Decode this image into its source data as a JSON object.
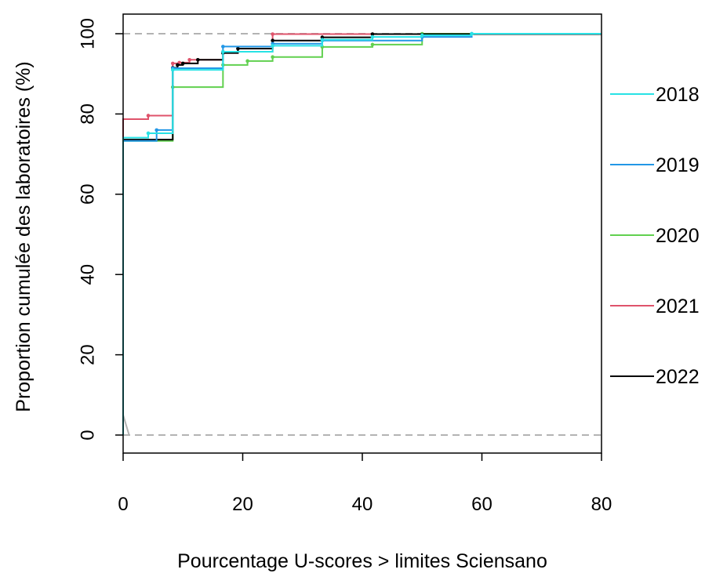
{
  "chart_data": {
    "type": "line",
    "step": true,
    "title": "",
    "xlabel": "Pourcentage U-scores > limites Sciensano",
    "ylabel": "Proportion cumulée des laboratoires (%)",
    "xlim": [
      0,
      80
    ],
    "ylim": [
      0,
      100
    ],
    "x_ticks": [
      0,
      20,
      40,
      60,
      80
    ],
    "y_ticks": [
      0,
      20,
      40,
      60,
      80,
      100
    ],
    "grid": false,
    "legend_position": "right",
    "reference_lines": [
      {
        "y": 0,
        "color": "#b3b3b3",
        "style": "dashed"
      },
      {
        "y": 100,
        "color": "#b3b3b3",
        "style": "dashed"
      }
    ],
    "series": [
      {
        "name": "2020",
        "color": "#61d04f",
        "points": [
          [
            0,
            73.3
          ],
          [
            8.3,
            86.7
          ],
          [
            16.7,
            92.2
          ],
          [
            20.8,
            93.2
          ],
          [
            25,
            94.2
          ],
          [
            33.3,
            96.7
          ],
          [
            41.7,
            97.3
          ],
          [
            50,
            100
          ],
          [
            80,
            100
          ]
        ]
      },
      {
        "name": "2021",
        "color": "#df536b",
        "points": [
          [
            0,
            78.7
          ],
          [
            4.2,
            79.6
          ],
          [
            8.3,
            92.6
          ],
          [
            9.4,
            92.8
          ],
          [
            11.1,
            93.5
          ],
          [
            16.7,
            95.5
          ],
          [
            25,
            99.9
          ],
          [
            80,
            99.9
          ]
        ]
      },
      {
        "name": "2022",
        "color": "#000000",
        "points": [
          [
            0,
            73.6
          ],
          [
            8.3,
            91.5
          ],
          [
            9.1,
            92.2
          ],
          [
            10,
            92.6
          ],
          [
            12.5,
            93.5
          ],
          [
            16.7,
            95.2
          ],
          [
            19.2,
            96.3
          ],
          [
            25,
            98.3
          ],
          [
            33.3,
            99.1
          ],
          [
            41.7,
            99.9
          ],
          [
            80,
            99.9
          ]
        ]
      },
      {
        "name": "2019",
        "color": "#2297e6",
        "points": [
          [
            0,
            73.3
          ],
          [
            5.6,
            76.0
          ],
          [
            8.3,
            91.4
          ],
          [
            16.7,
            96.8
          ],
          [
            25,
            97.5
          ],
          [
            33.3,
            98.3
          ],
          [
            50,
            99.2
          ],
          [
            58.3,
            100
          ],
          [
            80,
            100
          ]
        ]
      },
      {
        "name": "2018",
        "color": "#28e2e5",
        "points": [
          [
            0,
            74.1
          ],
          [
            4.2,
            75.2
          ],
          [
            8.3,
            91.0
          ],
          [
            16.7,
            95.5
          ],
          [
            25,
            97.0
          ],
          [
            33.3,
            98.5
          ],
          [
            41.7,
            99.2
          ],
          [
            50,
            99.6
          ],
          [
            58.3,
            100
          ],
          [
            80,
            100
          ]
        ]
      }
    ],
    "legend": [
      {
        "label": "2018",
        "color": "#28e2e5"
      },
      {
        "label": "2019",
        "color": "#2297e6"
      },
      {
        "label": "2020",
        "color": "#61d04f"
      },
      {
        "label": "2021",
        "color": "#df536b"
      },
      {
        "label": "2022",
        "color": "#000000"
      }
    ]
  }
}
